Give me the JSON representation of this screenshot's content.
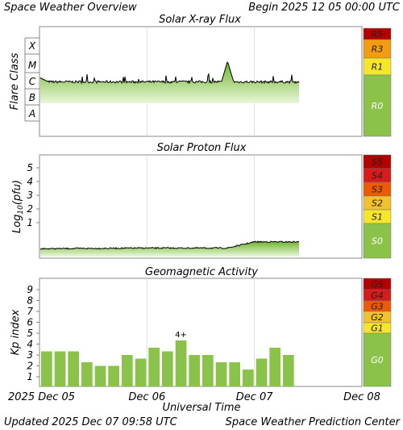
{
  "header": {
    "title": "Space Weather Overview",
    "begin_label": "Begin",
    "begin_value": "2025 12 05 00:00 UTC"
  },
  "footer": {
    "updated_label": "Updated",
    "updated_value": "2025 Dec 07 09:58 UTC",
    "center": "Space Weather Prediction Center"
  },
  "x_axis": {
    "title": "Universal Time",
    "year_prefix": "2025",
    "ticks": [
      "Dec 05",
      "Dec 06",
      "Dec 07",
      "Dec 08"
    ]
  },
  "colors": {
    "green": "#8bc34a",
    "yellow": "#f5e62a",
    "gold": "#f2c12e",
    "orange": "#f39c12",
    "orange_red": "#ee5a00",
    "red": "#d71a1a",
    "dark_red": "#b40000",
    "frame": "#888888",
    "grid": "#dddddd"
  },
  "chart_data": [
    {
      "type": "line",
      "title": "Solar X-ray Flux",
      "ylabel": "Flare Class",
      "y_categories": [
        "A",
        "B",
        "C",
        "M",
        "X"
      ],
      "x_range": [
        "2025-12-05 00:00",
        "2025-12-08 00:00"
      ],
      "data_end": "2025-12-07 09:58",
      "x": [
        "2025-12-05 00:00",
        "2025-12-05 06:00",
        "2025-12-05 12:00",
        "2025-12-05 18:00",
        "2025-12-06 00:00",
        "2025-12-06 06:00",
        "2025-12-06 12:00",
        "2025-12-06 18:00",
        "2025-12-07 00:00",
        "2025-12-07 06:00",
        "2025-12-07 09:58"
      ],
      "y": [
        "C2",
        "C1",
        "C1",
        "C1",
        "C1",
        "C2",
        "C1",
        "M5",
        "C2",
        "C1",
        "C1"
      ],
      "scale": [
        {
          "label": "R5",
          "color": "#b40000"
        },
        {
          "label": "R3",
          "color": "#f39c12"
        },
        {
          "label": "R1",
          "color": "#f5e62a"
        },
        {
          "label": "R0",
          "color": "#8bc34a"
        }
      ]
    },
    {
      "type": "line",
      "title": "Solar Proton Flux",
      "ylabel": "Log10(pfu)",
      "y_ticks": [
        "1",
        "2",
        "3",
        "4",
        "5"
      ],
      "x_range": [
        "2025-12-05 00:00",
        "2025-12-08 00:00"
      ],
      "x": [
        "2025-12-05 00:00",
        "2025-12-06 00:00",
        "2025-12-06 18:00",
        "2025-12-07 00:00",
        "2025-12-07 09:58"
      ],
      "y": [
        -0.9,
        -0.85,
        -0.85,
        -0.4,
        -0.4
      ],
      "scale": [
        {
          "label": "S5",
          "color": "#b40000"
        },
        {
          "label": "S4",
          "color": "#d71a1a"
        },
        {
          "label": "S3",
          "color": "#ee5a00"
        },
        {
          "label": "S2",
          "color": "#f2c12e"
        },
        {
          "label": "S1",
          "color": "#f5e62a"
        },
        {
          "label": "S0",
          "color": "#8bc34a"
        }
      ]
    },
    {
      "type": "bar",
      "title": "Geomagnetic Activity",
      "ylabel": "Kp index",
      "y_ticks": [
        "1",
        "2",
        "3",
        "4",
        "5",
        "6",
        "7",
        "8",
        "9"
      ],
      "ylim": [
        0,
        10
      ],
      "x_range": [
        "2025-12-05 00:00",
        "2025-12-08 00:00"
      ],
      "interval_hours": 3,
      "values": [
        3.33,
        3.33,
        3.33,
        2.33,
        2.0,
        2.0,
        3.0,
        2.67,
        3.67,
        3.33,
        4.33,
        3.0,
        3.0,
        2.33,
        2.33,
        1.67,
        2.67,
        3.67,
        3.0
      ],
      "annotations": [
        {
          "bar_index": 10,
          "text": "4+"
        }
      ],
      "scale": [
        {
          "label": "G5",
          "color": "#b40000"
        },
        {
          "label": "G4",
          "color": "#d71a1a"
        },
        {
          "label": "G3",
          "color": "#ee5a00"
        },
        {
          "label": "G2",
          "color": "#f2c12e"
        },
        {
          "label": "G1",
          "color": "#f5e62a"
        },
        {
          "label": "G0",
          "color": "#8bc34a"
        }
      ]
    }
  ]
}
